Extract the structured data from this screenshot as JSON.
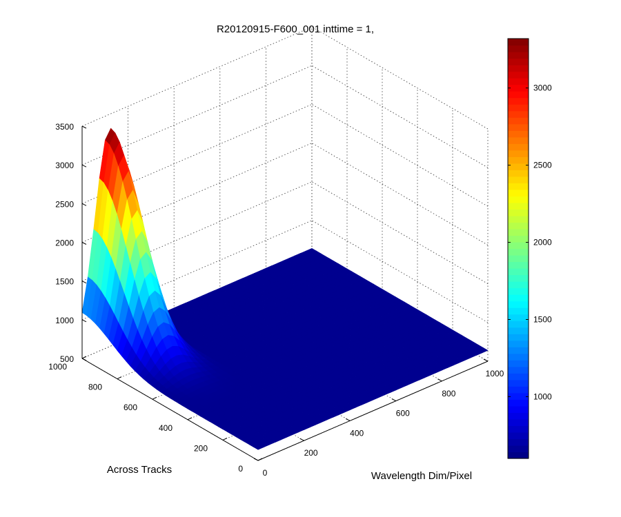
{
  "chart_data": {
    "type": "surface",
    "title": "R20120915-F600_001 inttime = 1,",
    "xlabel": "Across Tracks",
    "ylabel": "Wavelength Dim/Pixel",
    "zlabel": "",
    "x_ticks": [
      "0",
      "200",
      "400",
      "600",
      "800",
      "1000"
    ],
    "y_ticks": [
      "0",
      "200",
      "400",
      "600",
      "800",
      "1000"
    ],
    "z_ticks": [
      "500",
      "1000",
      "1500",
      "2000",
      "2500",
      "3000",
      "3500"
    ],
    "xlim": [
      0,
      1000
    ],
    "ylim": [
      0,
      1000
    ],
    "zlim": [
      500,
      3500
    ],
    "colorbar_ticks": [
      "1000",
      "1500",
      "2000",
      "2500",
      "3000"
    ],
    "colorbar_range": [
      600,
      3320
    ],
    "colormap": "jet",
    "grid": true,
    "surface": {
      "baseline": 640,
      "peak_value": 3320,
      "peak_x": 1000,
      "peak_y": 120,
      "x_width": 240,
      "y_width": 90,
      "y_edge": 260
    }
  }
}
